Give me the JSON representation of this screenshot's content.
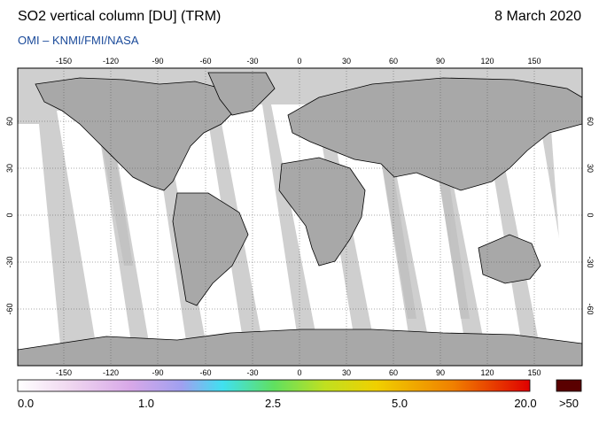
{
  "header": {
    "title": "SO2 vertical column [DU] (TRM)",
    "date": "8 March 2020",
    "credit": "OMI  –  KNMI/FMI/NASA"
  },
  "map": {
    "lon_ticks": [
      "-150",
      "-120",
      "-90",
      "-60",
      "-30",
      "0",
      "30",
      "60",
      "90",
      "120",
      "150"
    ],
    "lat_ticks": [
      "60",
      "30",
      "0",
      "-30",
      "-60"
    ],
    "colors": {
      "no_data": "#cfcfcf",
      "land": "#a8a8a8",
      "ocean_swath": "#ffffff"
    }
  },
  "colorbar": {
    "labels": [
      "0.0",
      "1.0",
      "2.5",
      "5.0",
      "20.0"
    ],
    "overflow_label": ">50",
    "overflow_color": "#5a0000",
    "stops": [
      "#ffffff",
      "#f0d8f0",
      "#d8a8e8",
      "#a0a0f0",
      "#40e0f0",
      "#60e060",
      "#c0e020",
      "#f0d000",
      "#f08000",
      "#e00000"
    ]
  }
}
